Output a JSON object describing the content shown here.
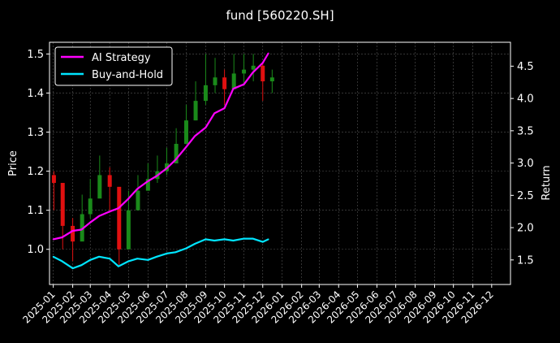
{
  "chart_data": {
    "type": "line",
    "title": "fund [560220.SH]",
    "ylabel": "Price",
    "y2label": "Return",
    "ylim": [
      0.91,
      1.53
    ],
    "y2lim": [
      1.12,
      4.87
    ],
    "yticks": [
      "1.0",
      "1.1",
      "1.2",
      "1.3",
      "1.4",
      "1.5"
    ],
    "y2ticks": [
      "1.5",
      "2.0",
      "2.5",
      "3.0",
      "3.5",
      "4.0",
      "4.5"
    ],
    "xticks": [
      "2025-01",
      "2025-02",
      "2025-03",
      "2025-04",
      "2025-05",
      "2025-06",
      "2025-07",
      "2025-08",
      "2025-09",
      "2025-10",
      "2025-11",
      "2025-12",
      "2026-01",
      "2026-02",
      "2026-03",
      "2026-04",
      "2026-05",
      "2026-06",
      "2026-07",
      "2026-08",
      "2026-09",
      "2026-10",
      "2026-11",
      "2026-12"
    ],
    "grid": true,
    "legend_position": "top-left",
    "price_candles": {
      "x": [
        "2025-01-02",
        "2025-01-16",
        "2025-02-01",
        "2025-02-16",
        "2025-03-01",
        "2025-03-16",
        "2025-04-01",
        "2025-04-16",
        "2025-05-01",
        "2025-05-16",
        "2025-06-01",
        "2025-06-16",
        "2025-07-01",
        "2025-07-16",
        "2025-08-01",
        "2025-08-16",
        "2025-09-01",
        "2025-09-16",
        "2025-10-01",
        "2025-10-16",
        "2025-11-01",
        "2025-11-16",
        "2025-12-01",
        "2025-12-16"
      ],
      "close": [
        1.17,
        1.06,
        1.02,
        1.09,
        1.13,
        1.19,
        1.16,
        1.0,
        1.1,
        1.15,
        1.18,
        1.2,
        1.22,
        1.27,
        1.33,
        1.38,
        1.42,
        1.44,
        1.41,
        1.45,
        1.46,
        1.47,
        1.43,
        1.44
      ],
      "low": [
        1.1,
        1.0,
        0.97,
        1.03,
        1.08,
        1.14,
        1.1,
        0.96,
        1.05,
        1.11,
        1.15,
        1.17,
        1.19,
        1.23,
        1.29,
        1.33,
        1.37,
        1.4,
        1.37,
        1.41,
        1.42,
        1.43,
        1.38,
        1.4
      ],
      "high": [
        1.2,
        1.12,
        1.08,
        1.14,
        1.18,
        1.24,
        1.21,
        1.08,
        1.15,
        1.19,
        1.22,
        1.24,
        1.26,
        1.31,
        1.37,
        1.43,
        1.5,
        1.49,
        1.46,
        1.5,
        1.5,
        1.5,
        1.48,
        1.46
      ],
      "up_color": "#1a8a1a",
      "down_color": "#e01010"
    },
    "series": [
      {
        "name": "AI Strategy",
        "color": "#ff00ff",
        "axis": "right",
        "x": [
          "2025-01-01",
          "2025-01-15",
          "2025-02-01",
          "2025-02-15",
          "2025-03-01",
          "2025-03-15",
          "2025-04-01",
          "2025-04-15",
          "2025-05-01",
          "2025-05-15",
          "2025-06-01",
          "2025-06-15",
          "2025-07-01",
          "2025-07-15",
          "2025-08-01",
          "2025-08-15",
          "2025-09-01",
          "2025-09-15",
          "2025-10-01",
          "2025-10-15",
          "2025-11-01",
          "2025-11-15",
          "2025-12-01",
          "2025-12-10"
        ],
        "values": [
          1.82,
          1.85,
          1.95,
          1.97,
          2.08,
          2.18,
          2.25,
          2.3,
          2.45,
          2.6,
          2.72,
          2.8,
          2.92,
          3.05,
          3.25,
          3.42,
          3.55,
          3.77,
          3.85,
          4.15,
          4.22,
          4.4,
          4.55,
          4.7
        ]
      },
      {
        "name": "Buy-and-Hold",
        "color": "#00e5ff",
        "axis": "right",
        "x": [
          "2025-01-01",
          "2025-01-15",
          "2025-02-01",
          "2025-02-15",
          "2025-03-01",
          "2025-03-15",
          "2025-04-01",
          "2025-04-15",
          "2025-05-01",
          "2025-05-15",
          "2025-06-01",
          "2025-06-15",
          "2025-07-01",
          "2025-07-15",
          "2025-08-01",
          "2025-08-15",
          "2025-09-01",
          "2025-09-15",
          "2025-10-01",
          "2025-10-15",
          "2025-11-01",
          "2025-11-15",
          "2025-12-01",
          "2025-12-10"
        ],
        "values": [
          1.55,
          1.48,
          1.37,
          1.42,
          1.5,
          1.55,
          1.52,
          1.4,
          1.48,
          1.52,
          1.5,
          1.55,
          1.6,
          1.62,
          1.68,
          1.75,
          1.82,
          1.8,
          1.82,
          1.8,
          1.83,
          1.83,
          1.78,
          1.82
        ]
      }
    ]
  }
}
